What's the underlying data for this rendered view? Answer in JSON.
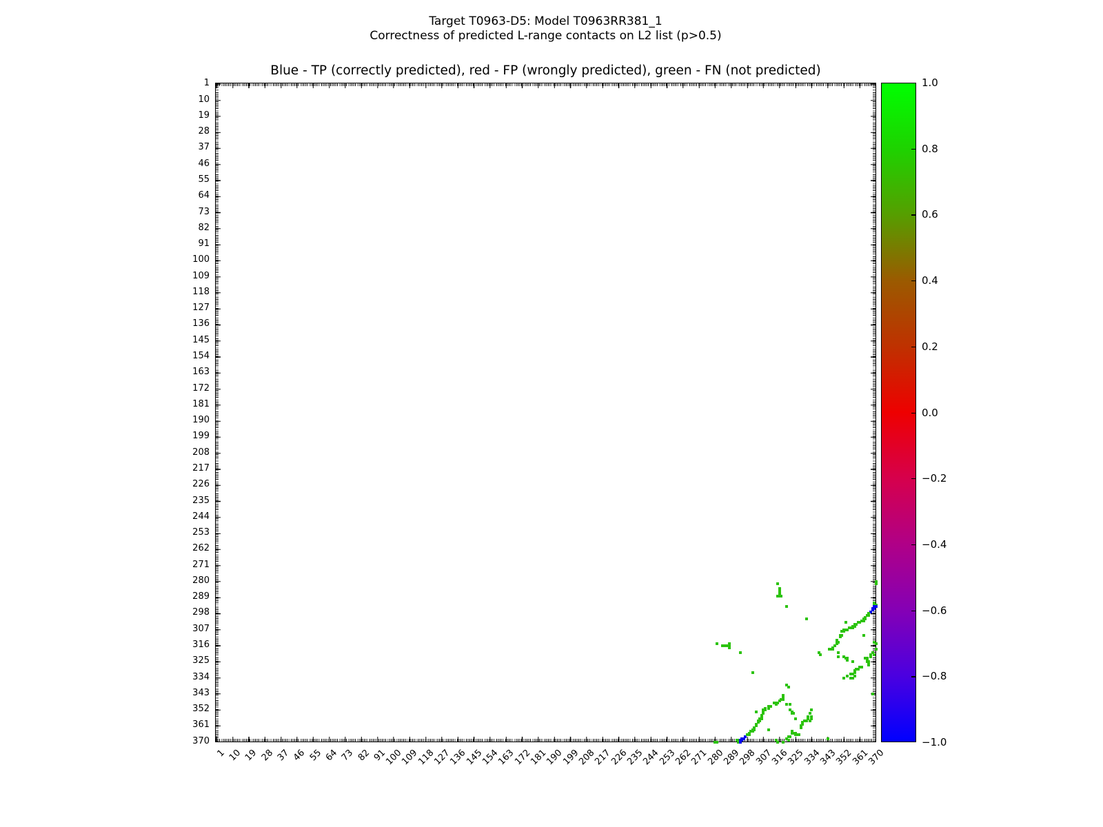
{
  "title_line1": "Target T0963-D5: Model T0963RR381_1",
  "title_line2": "Correctness of predicted L-range contacts on L2 list (p>0.5)",
  "chart_data": {
    "type": "scatter",
    "axes_title": "Blue - TP (correctly predicted), red - FP (wrongly predicted), green - FN (not predicted)",
    "axis_range": [
      1,
      370
    ],
    "tick_step": 9,
    "tick_labels": [
      "1",
      "10",
      "19",
      "28",
      "37",
      "46",
      "55",
      "64",
      "73",
      "82",
      "91",
      "100",
      "109",
      "118",
      "127",
      "136",
      "145",
      "154",
      "163",
      "172",
      "181",
      "190",
      "199",
      "208",
      "217",
      "226",
      "235",
      "244",
      "253",
      "262",
      "271",
      "280",
      "289",
      "298",
      "307",
      "316",
      "325",
      "334",
      "343",
      "352",
      "361",
      "370"
    ],
    "grid": false,
    "symmetric": true,
    "legend_colors": {
      "TP": "#0005ee",
      "FP": "#dd0000",
      "FN": "#2cc30e"
    },
    "colorbar": {
      "min": -1.0,
      "max": 1.0,
      "tick_labels": [
        "1.0",
        "0.8",
        "0.6",
        "0.4",
        "0.2",
        "0.0",
        "−0.2",
        "−0.4",
        "−0.6",
        "−0.8",
        "−1.0"
      ],
      "gradient_stops": [
        "#00ff00",
        "#1ed200",
        "#569e00",
        "#9b5a00",
        "#bf3100",
        "#ee0000",
        "#d6004c",
        "#b00087",
        "#8500b5",
        "#4b00e0",
        "#0000ff"
      ]
    },
    "points": [
      [
        281,
        315,
        "FN"
      ],
      [
        284,
        316,
        "FN"
      ],
      [
        285,
        316,
        "FN"
      ],
      [
        286,
        316,
        "FN"
      ],
      [
        287,
        316,
        "FN"
      ],
      [
        288,
        315,
        "FN"
      ],
      [
        288,
        316,
        "FN"
      ],
      [
        288,
        317,
        "FN"
      ],
      [
        294,
        320,
        "FN"
      ],
      [
        301,
        331,
        "FN"
      ],
      [
        303,
        353,
        "FN"
      ],
      [
        310,
        363,
        "FN"
      ],
      [
        280,
        370,
        "FN"
      ],
      [
        281,
        370,
        "FN"
      ],
      [
        292,
        369,
        "FN"
      ],
      [
        293,
        369,
        "FN"
      ],
      [
        293,
        370,
        "FN"
      ],
      [
        294,
        369,
        "TP"
      ],
      [
        294,
        370,
        "TP"
      ],
      [
        295,
        368,
        "TP"
      ],
      [
        295,
        369,
        "TP"
      ],
      [
        296,
        368,
        "TP"
      ],
      [
        297,
        367,
        "TP"
      ],
      [
        298,
        366,
        "FN"
      ],
      [
        299,
        365,
        "FN"
      ],
      [
        299,
        366,
        "FN"
      ],
      [
        300,
        364,
        "FN"
      ],
      [
        301,
        363,
        "FN"
      ],
      [
        301,
        364,
        "FN"
      ],
      [
        302,
        362,
        "FN"
      ],
      [
        302,
        363,
        "FN"
      ],
      [
        303,
        360,
        "FN"
      ],
      [
        303,
        361,
        "FN"
      ],
      [
        304,
        358,
        "FN"
      ],
      [
        304,
        359,
        "FN"
      ],
      [
        305,
        357,
        "FN"
      ],
      [
        305,
        358,
        "FN"
      ],
      [
        306,
        355,
        "FN"
      ],
      [
        306,
        356,
        "FN"
      ],
      [
        306,
        357,
        "FN"
      ],
      [
        307,
        352,
        "FN"
      ],
      [
        307,
        353,
        "FN"
      ],
      [
        307,
        354,
        "FN"
      ],
      [
        308,
        351,
        "FN"
      ],
      [
        308,
        352,
        "FN"
      ],
      [
        310,
        350,
        "FN"
      ],
      [
        310,
        351,
        "FN"
      ],
      [
        311,
        350,
        "FN"
      ],
      [
        313,
        348,
        "FN"
      ],
      [
        314,
        348,
        "FN"
      ],
      [
        314,
        349,
        "FN"
      ],
      [
        315,
        348,
        "FN"
      ],
      [
        316,
        347,
        "FN"
      ],
      [
        314,
        369,
        "FN"
      ],
      [
        315,
        370,
        "FN"
      ],
      [
        318,
        370,
        "FN"
      ],
      [
        321,
        369,
        "FN"
      ],
      [
        317,
        346,
        "FN"
      ],
      [
        318,
        344,
        "FN"
      ],
      [
        318,
        345,
        "FN"
      ],
      [
        318,
        346,
        "FN"
      ],
      [
        320,
        338,
        "FN"
      ],
      [
        321,
        339,
        "FN"
      ],
      [
        320,
        349,
        "FN"
      ],
      [
        322,
        349,
        "FN"
      ],
      [
        322,
        352,
        "FN"
      ],
      [
        323,
        353,
        "FN"
      ],
      [
        323,
        354,
        "FN"
      ],
      [
        324,
        354,
        "FN"
      ],
      [
        325,
        357,
        "FN"
      ],
      [
        320,
        368,
        "FN"
      ],
      [
        321,
        367,
        "FN"
      ],
      [
        322,
        367,
        "FN"
      ],
      [
        323,
        364,
        "FN"
      ],
      [
        323,
        365,
        "FN"
      ],
      [
        324,
        365,
        "FN"
      ],
      [
        325,
        365,
        "FN"
      ],
      [
        325,
        366,
        "FN"
      ],
      [
        326,
        366,
        "FN"
      ],
      [
        327,
        366,
        "FN"
      ],
      [
        328,
        361,
        "FN"
      ],
      [
        328,
        362,
        "FN"
      ],
      [
        329,
        359,
        "FN"
      ],
      [
        329,
        360,
        "FN"
      ],
      [
        330,
        358,
        "FN"
      ],
      [
        331,
        358,
        "FN"
      ],
      [
        332,
        356,
        "FN"
      ],
      [
        332,
        357,
        "FN"
      ],
      [
        333,
        354,
        "FN"
      ],
      [
        333,
        358,
        "FN"
      ],
      [
        334,
        352,
        "FN"
      ],
      [
        334,
        356,
        "FN"
      ],
      [
        334,
        357,
        "FN"
      ],
      [
        343,
        368,
        "FN"
      ]
    ]
  }
}
